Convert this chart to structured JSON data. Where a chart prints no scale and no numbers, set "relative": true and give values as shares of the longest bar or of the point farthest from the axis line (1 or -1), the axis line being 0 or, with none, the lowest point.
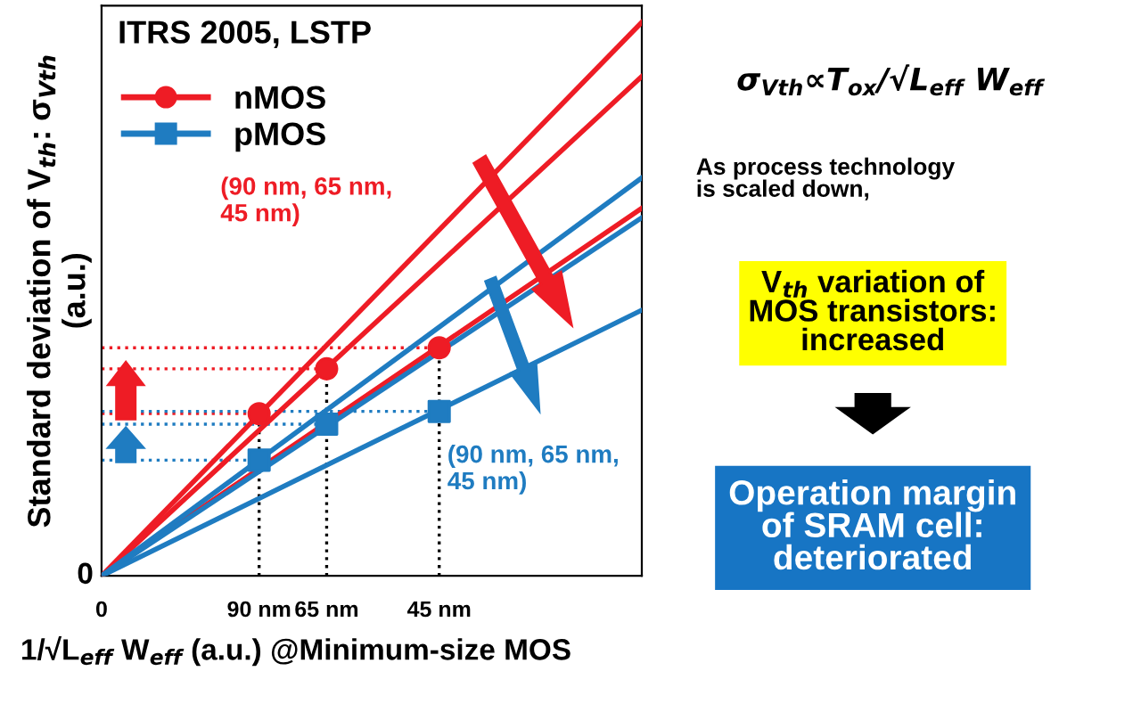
{
  "chart_data": {
    "type": "line",
    "relative": true,
    "title": "ITRS 2005, LSTP",
    "xlabel": "1/√L$_{eff}$ W$_{eff}$ (a.u.) @Minimum-size MOS",
    "ylabel": "Standard deviation of V$_{th}$: σ$_{Vth}$\n(a.u.)",
    "categories": [
      "0",
      null,
      null,
      null,
      null,
      null,
      null,
      "90 nm",
      null,
      null,
      "65 nm",
      null,
      null,
      null,
      null,
      "45 nm",
      null,
      null,
      null,
      null,
      null,
      null,
      null,
      null,
      null
    ],
    "grid": false,
    "legend": "top left",
    "ref_lines": [
      {
        "axis": "y",
        "value": 0.293,
        "color": "#ee1c25",
        "line_style": "dotted"
      },
      {
        "axis": "y",
        "value": 0.374,
        "color": "#ee1c25",
        "line_style": "dotted"
      },
      {
        "axis": "y",
        "value": 0.412,
        "color": "#ee1c25",
        "line_style": "dotted"
      },
      {
        "axis": "y",
        "value": 0.209,
        "color": "#1f7cc1",
        "line_style": "dotted"
      },
      {
        "axis": "y",
        "value": 0.274,
        "color": "#1f7cc1",
        "line_style": "dotted"
      },
      {
        "axis": "y",
        "value": 0.297,
        "color": "#1f7cc1",
        "line_style": "dotted"
      }
    ],
    "series": [
      {
        "color": "#ee1c25",
        "values": [
          0,
          null,
          null,
          null,
          null,
          null,
          null,
          null,
          null,
          null,
          null,
          null,
          null,
          null,
          null,
          null,
          null,
          null,
          null,
          null,
          null,
          null,
          null,
          null,
          1.0
        ]
      },
      {
        "color": "#ee1c25",
        "values": [
          0,
          null,
          null,
          null,
          null,
          null,
          null,
          null,
          null,
          null,
          null,
          null,
          null,
          null,
          null,
          null,
          null,
          null,
          null,
          null,
          null,
          null,
          null,
          null,
          0.902
        ]
      },
      {
        "color": "#ee1c25",
        "values": [
          0,
          null,
          null,
          null,
          null,
          null,
          null,
          null,
          null,
          null,
          null,
          null,
          null,
          null,
          null,
          null,
          null,
          null,
          null,
          null,
          null,
          null,
          null,
          null,
          0.664
        ]
      },
      {
        "color": "#1f7cc1",
        "values": [
          0,
          null,
          null,
          null,
          null,
          null,
          null,
          null,
          null,
          null,
          null,
          null,
          null,
          null,
          null,
          null,
          null,
          null,
          null,
          null,
          null,
          null,
          null,
          null,
          0.719
        ]
      },
      {
        "color": "#1f7cc1",
        "values": [
          0,
          null,
          null,
          null,
          null,
          null,
          null,
          null,
          null,
          null,
          null,
          null,
          null,
          null,
          null,
          null,
          null,
          null,
          null,
          null,
          null,
          null,
          null,
          null,
          0.647
        ]
      },
      {
        "color": "#1f7cc1",
        "values": [
          0,
          null,
          null,
          null,
          null,
          null,
          null,
          null,
          null,
          null,
          null,
          null,
          null,
          null,
          null,
          null,
          null,
          null,
          null,
          null,
          null,
          null,
          null,
          null,
          0.48
        ]
      },
      {
        "name": "nMOS",
        "type": "scatter",
        "marker": "circle",
        "color": "#ee1c25",
        "values": [
          null,
          null,
          null,
          null,
          null,
          null,
          null,
          0.293,
          null,
          null,
          0.374,
          null,
          null,
          null,
          null,
          0.412,
          null,
          null,
          null,
          null,
          null,
          null,
          null,
          null,
          null
        ]
      },
      {
        "name": "pMOS",
        "type": "scatter",
        "marker": "square",
        "color": "#1f7cc1",
        "values": [
          null,
          null,
          null,
          null,
          null,
          null,
          null,
          0.209,
          null,
          null,
          0.274,
          null,
          null,
          null,
          null,
          0.297,
          null,
          null,
          null,
          null,
          null,
          null,
          null,
          null,
          null
        ]
      }
    ],
    "annotations": [
      "(90 nm, 65 nm,\n45 nm)",
      "(90 nm, 65 nm,\n45 nm)",
      "0",
      "σ$_{Vth}$∝T$_{ox}$/√L$_{eff}$ W$_{eff}$",
      "As process technology\nis scaled down,",
      "V$_{th}$ variation of\nMOS transistors:\nincreased",
      "Operation margin\nof SRAM cell:\ndeteriorated"
    ]
  }
}
